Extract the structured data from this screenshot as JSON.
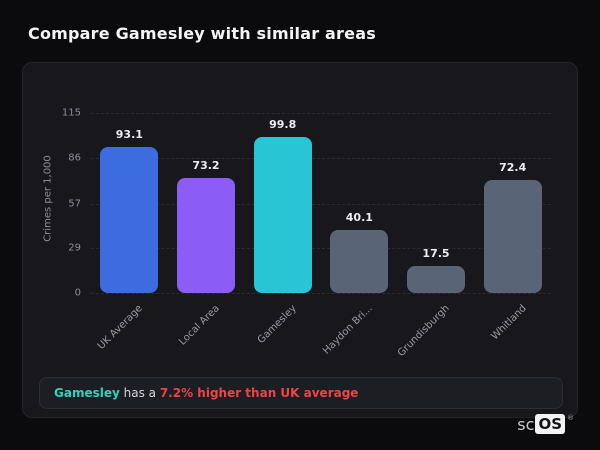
{
  "header": {
    "title": "Compare Gamesley with similar areas"
  },
  "chart_data": {
    "type": "bar",
    "title": "",
    "xlabel": "",
    "ylabel": "Crimes per 1,000",
    "ylim": [
      0,
      115
    ],
    "yticks": [
      0,
      29,
      57,
      86,
      115
    ],
    "grid": true,
    "legend_position": "none",
    "categories": [
      "UK Average",
      "Local Area",
      "Gamesley",
      "Haydon Bri...",
      "Grundisburgh",
      "Whitland"
    ],
    "values": [
      93.1,
      73.2,
      99.8,
      40.1,
      17.5,
      72.4
    ],
    "bar_colors": [
      "#3d6be0",
      "#8b5cf6",
      "#29c5d4",
      "#5a6477",
      "#5a6477",
      "#5a6477"
    ]
  },
  "note": {
    "area_name": "Gamesley",
    "connector": " has a ",
    "highlight": "7.2% higher than UK average"
  },
  "logo": {
    "prefix": "sc",
    "badge": "OS",
    "registered": "®"
  },
  "colors": {
    "accent_teal": "#2dd4bf",
    "alert_red": "#ef4444",
    "card_bg": "#17171c",
    "page_bg": "#0b0b0e"
  }
}
